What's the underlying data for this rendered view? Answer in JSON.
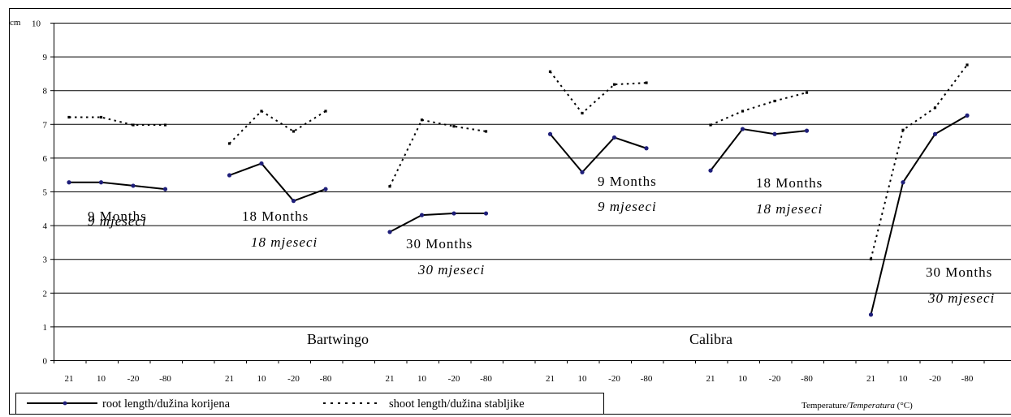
{
  "chart_data": {
    "type": "line",
    "ylabel_unit": "cm",
    "ylim": [
      0,
      10
    ],
    "yticks": [
      "0",
      "1",
      "2",
      "3",
      "4",
      "5",
      "6",
      "7",
      "8",
      "9",
      "10"
    ],
    "x_categories": [
      "21",
      "10",
      "-20",
      "-80"
    ],
    "xlabel_text": "Temperature/",
    "xlabel_italic": "Temperatura",
    "xlabel_unit": " (°C)",
    "grid": true,
    "cultivars": [
      {
        "name": "Bartwingo",
        "groups": [
          {
            "label": "9 Months",
            "label_it": "9 mjeseci",
            "root": [
              5.27,
              5.27,
              5.17,
              5.07
            ],
            "shoot": [
              7.2,
              7.2,
              6.97,
              6.97
            ]
          },
          {
            "label": "18 Months",
            "label_it": "18 mjeseci",
            "root": [
              5.48,
              5.83,
              4.72,
              5.07
            ],
            "shoot": [
              6.42,
              7.38,
              6.78,
              7.38
            ]
          },
          {
            "label": "30 Months",
            "label_it": "30 mjeseci",
            "root": [
              3.8,
              4.3,
              4.35,
              4.35
            ],
            "shoot": [
              5.15,
              7.12,
              6.93,
              6.78
            ]
          }
        ]
      },
      {
        "name": "Calibra",
        "groups": [
          {
            "label": "9 Months",
            "label_it": "9 mjeseci",
            "root": [
              6.7,
              5.57,
              6.6,
              6.28
            ],
            "shoot": [
              8.55,
              7.32,
              8.17,
              8.22
            ]
          },
          {
            "label": "18 Months",
            "label_it": "18 mjeseci",
            "root": [
              5.62,
              6.85,
              6.7,
              6.8
            ],
            "shoot": [
              6.97,
              7.38,
              7.68,
              7.93
            ]
          },
          {
            "label": "30 Months",
            "label_it": "30 mjeseci",
            "root": [
              1.35,
              5.27,
              6.7,
              7.25
            ],
            "shoot": [
              3.0,
              6.82,
              7.48,
              8.75
            ]
          }
        ]
      }
    ],
    "series": [
      {
        "name": "root length/dužina korijena",
        "style": "solid",
        "color": "#000000",
        "marker_color": "#1f1f7a"
      },
      {
        "name": "shoot length/dužina stabljike",
        "style": "dotted",
        "color": "#000000"
      }
    ]
  }
}
